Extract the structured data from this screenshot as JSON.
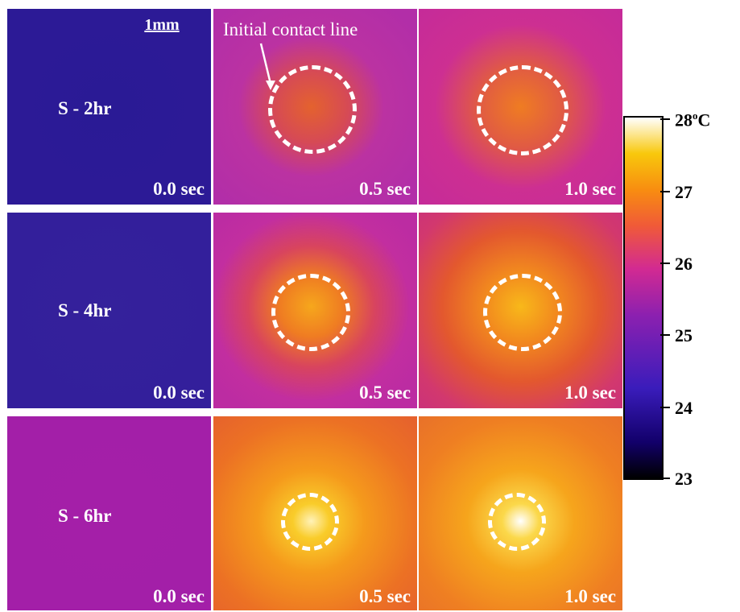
{
  "rows": [
    {
      "label": "S - 2hr",
      "panels": [
        {
          "time": "0.0 sec",
          "center": "#2a1a95",
          "edge": "#2c1a96",
          "ring": false
        },
        {
          "time": "0.5 sec",
          "center": "#e4622e",
          "edge": "#b32ea7",
          "ring": true
        },
        {
          "time": "1.0 sec",
          "center": "#ef7c22",
          "edge": "#c52b99",
          "ring": true
        }
      ]
    },
    {
      "label": "S - 4hr",
      "panels": [
        {
          "time": "0.0 sec",
          "center": "#34219b",
          "edge": "#331f9b",
          "ring": false
        },
        {
          "time": "0.5 sec",
          "center": "#f6a71c",
          "edge": "#bf2c9f",
          "ring": true
        },
        {
          "time": "1.0 sec",
          "center": "#f8b81a",
          "edge": "#d0366b",
          "ring": true
        }
      ]
    },
    {
      "label": "S - 6hr",
      "panels": [
        {
          "time": "0.0 sec",
          "center": "#a41fa8",
          "edge": "#a31fa8",
          "ring": false
        },
        {
          "time": "0.5 sec",
          "center": "#fff2b8",
          "edge": "#e8622c",
          "ring": true
        },
        {
          "time": "1.0 sec",
          "center": "#ffffff",
          "edge": "#e8702a",
          "ring": true
        }
      ]
    }
  ],
  "scale_bar": "1mm",
  "annotation": "Initial contact line",
  "colorbar": {
    "unit": "C",
    "min": 23,
    "max": 28,
    "ticks": [
      "28",
      "27",
      "26",
      "25",
      "24",
      "23"
    ]
  }
}
